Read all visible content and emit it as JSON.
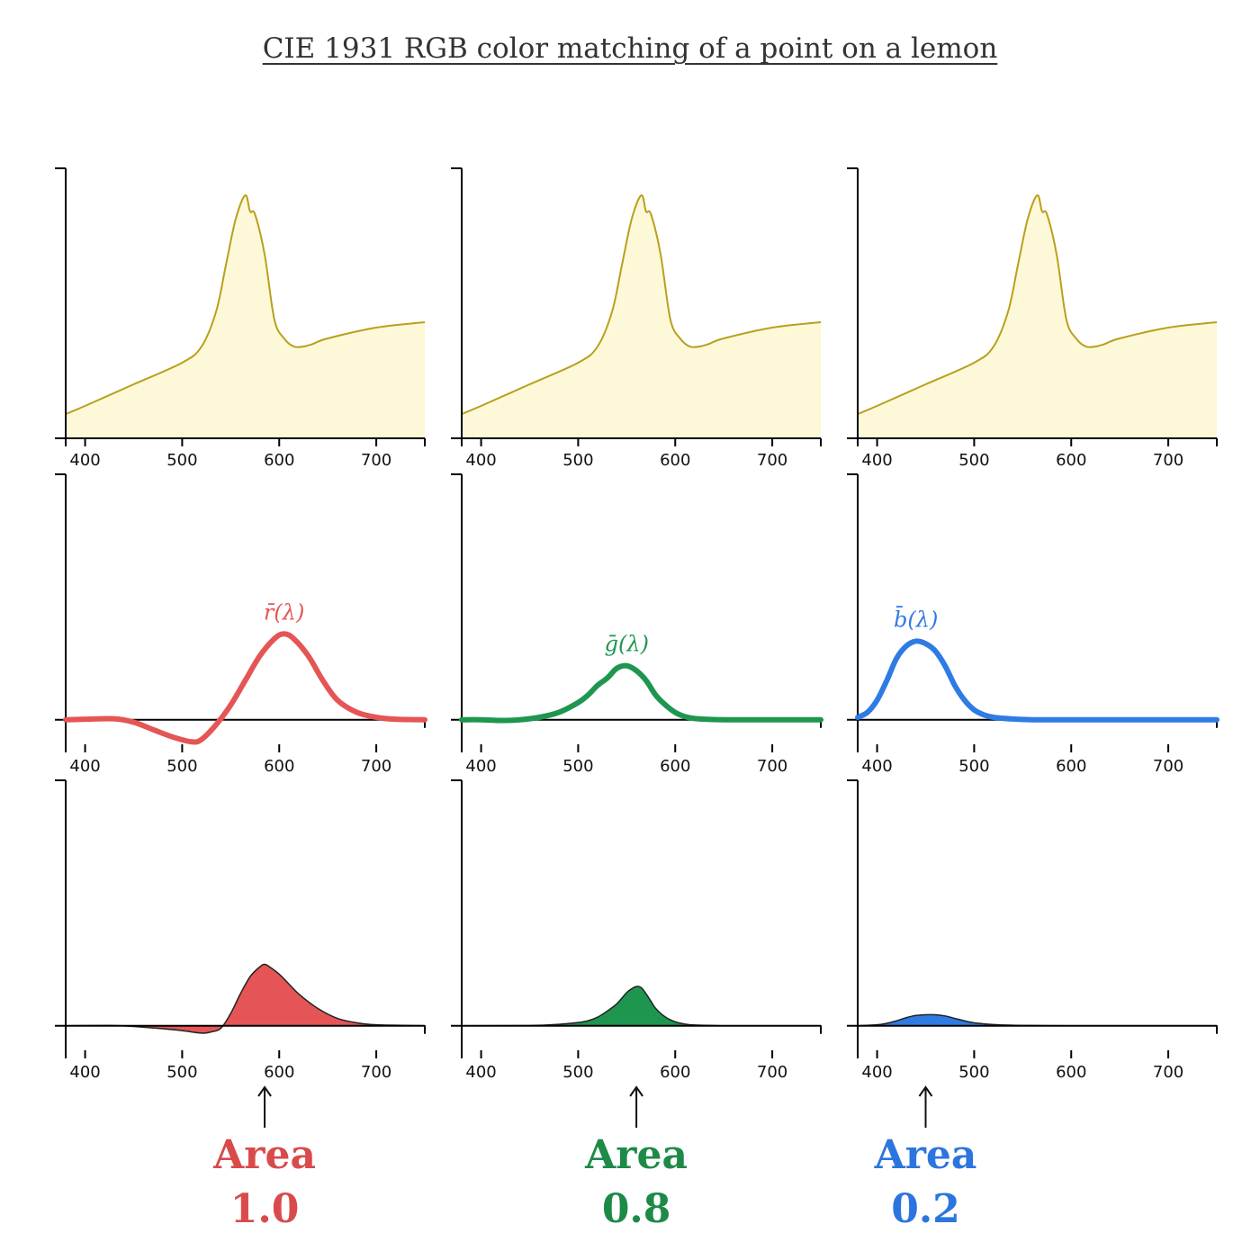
{
  "title": "CIE 1931 RGB color matching of a point on a lemon",
  "colors": {
    "spectrum_fill": "#fdf8d8",
    "spectrum_line": "#b9a01c",
    "red": "#e55555",
    "green": "#1e9650",
    "blue": "#2f7be4",
    "red_text": "#d94b4b",
    "green_text": "#1e8a47",
    "blue_text": "#2c75df",
    "axis": "#000000"
  },
  "columns": [
    {
      "channel": "red",
      "curve_label": "r̄(λ)",
      "area_word": "Area",
      "area_value": "1.0"
    },
    {
      "channel": "green",
      "curve_label": "ḡ(λ)",
      "area_word": "Area",
      "area_value": "0.8"
    },
    {
      "channel": "blue",
      "curve_label": "b̄(λ)",
      "area_word": "Area",
      "area_value": "0.2"
    }
  ],
  "chart_data": [
    {
      "type": "area",
      "row": "spectrum",
      "columns": [
        "red",
        "green",
        "blue"
      ],
      "xlim": [
        380,
        750
      ],
      "ylim": [
        0,
        1
      ],
      "xticks": [
        400,
        500,
        600,
        700
      ],
      "x": [
        380,
        400,
        450,
        500,
        520,
        535,
        545,
        555,
        565,
        570,
        575,
        585,
        595,
        605,
        615,
        625,
        635,
        650,
        700,
        750
      ],
      "values": [
        0.09,
        0.12,
        0.2,
        0.28,
        0.34,
        0.47,
        0.64,
        0.81,
        0.9,
        0.84,
        0.83,
        0.68,
        0.44,
        0.37,
        0.34,
        0.34,
        0.35,
        0.37,
        0.41,
        0.43
      ]
    },
    {
      "type": "line",
      "row": "matching_functions",
      "xlim": [
        380,
        750
      ],
      "ylim": [
        -0.1,
        1
      ],
      "xticks": [
        400,
        500,
        600,
        700
      ],
      "series": [
        {
          "name": "r̄(λ)",
          "x": [
            380,
            400,
            430,
            450,
            470,
            490,
            510,
            520,
            535,
            550,
            565,
            580,
            595,
            605,
            615,
            630,
            645,
            660,
            680,
            700,
            720,
            750
          ],
          "values": [
            0.0,
            0.002,
            0.004,
            -0.01,
            -0.04,
            -0.07,
            -0.09,
            -0.08,
            -0.02,
            0.06,
            0.16,
            0.26,
            0.33,
            0.35,
            0.33,
            0.26,
            0.16,
            0.08,
            0.03,
            0.01,
            0.002,
            0.0
          ]
        },
        {
          "name": "ḡ(λ)",
          "x": [
            380,
            400,
            420,
            440,
            460,
            480,
            500,
            510,
            520,
            530,
            540,
            550,
            560,
            570,
            580,
            590,
            600,
            610,
            620,
            640,
            660,
            700,
            750
          ],
          "values": [
            0.0,
            0.0,
            -0.003,
            0.0,
            0.01,
            0.03,
            0.07,
            0.1,
            0.14,
            0.17,
            0.21,
            0.22,
            0.2,
            0.16,
            0.1,
            0.06,
            0.03,
            0.013,
            0.005,
            0.001,
            0.0,
            0.0,
            0.0
          ]
        },
        {
          "name": "b̄(λ)",
          "x": [
            380,
            390,
            400,
            410,
            420,
            430,
            440,
            450,
            460,
            470,
            480,
            490,
            500,
            510,
            520,
            540,
            560,
            600,
            700,
            750
          ],
          "values": [
            0.01,
            0.03,
            0.08,
            0.16,
            0.25,
            0.3,
            0.32,
            0.31,
            0.28,
            0.22,
            0.14,
            0.08,
            0.04,
            0.02,
            0.01,
            0.003,
            0.0,
            0.0,
            0.0,
            0.0
          ]
        }
      ]
    },
    {
      "type": "area",
      "row": "products",
      "xlim": [
        380,
        750
      ],
      "ylim": [
        -0.1,
        1
      ],
      "xticks": [
        400,
        500,
        600,
        700
      ],
      "series": [
        {
          "channel": "red",
          "x": [
            380,
            430,
            450,
            480,
            500,
            520,
            530,
            540,
            550,
            560,
            570,
            580,
            585,
            590,
            600,
            610,
            620,
            640,
            660,
            680,
            700,
            750
          ],
          "values": [
            0.0,
            0.001,
            -0.003,
            -0.012,
            -0.02,
            -0.03,
            -0.025,
            -0.01,
            0.05,
            0.13,
            0.2,
            0.24,
            0.25,
            0.24,
            0.21,
            0.17,
            0.13,
            0.07,
            0.03,
            0.012,
            0.004,
            0.0
          ]
        },
        {
          "channel": "green",
          "x": [
            380,
            450,
            480,
            500,
            510,
            520,
            530,
            540,
            550,
            555,
            560,
            565,
            570,
            575,
            580,
            590,
            600,
            610,
            620,
            640,
            660,
            750
          ],
          "values": [
            0.0,
            0.001,
            0.006,
            0.013,
            0.02,
            0.035,
            0.06,
            0.09,
            0.135,
            0.15,
            0.16,
            0.155,
            0.13,
            0.1,
            0.07,
            0.035,
            0.016,
            0.007,
            0.003,
            0.001,
            0.0,
            0.0
          ]
        },
        {
          "channel": "blue",
          "x": [
            380,
            400,
            410,
            420,
            430,
            440,
            450,
            460,
            470,
            480,
            490,
            500,
            520,
            540,
            600,
            750
          ],
          "values": [
            0.0,
            0.004,
            0.01,
            0.02,
            0.033,
            0.042,
            0.045,
            0.045,
            0.04,
            0.03,
            0.02,
            0.012,
            0.005,
            0.002,
            0.0,
            0.0
          ]
        }
      ]
    }
  ]
}
